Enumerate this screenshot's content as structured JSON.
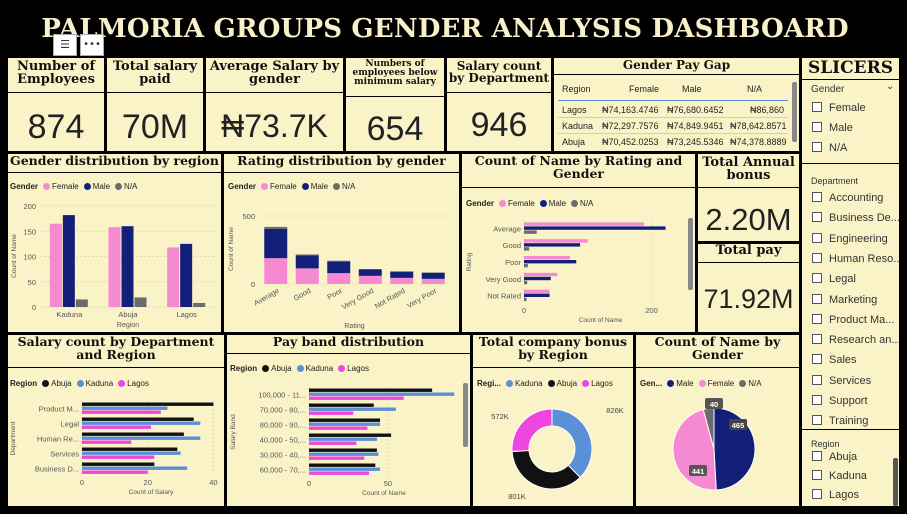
{
  "dashboard": {
    "title": "PALMORIA GROUPS GENDER ANALYSIS DASHBOARD"
  },
  "kpis": {
    "employees": {
      "label": "Number of Employees",
      "value": "874"
    },
    "salary_paid": {
      "label": "Total salary paid",
      "value": "70M"
    },
    "avg_salary": {
      "label": "Average Salary by gender",
      "value": "₦73.7K"
    },
    "below_min": {
      "label": "Numbers of employees below minimum salary",
      "value": "654"
    },
    "salary_count_dept": {
      "label": "Salary count by Department",
      "value": "946"
    },
    "annual_bonus": {
      "label": "Total Annual bonus",
      "value": "2.20M"
    },
    "total_pay": {
      "label": "Total pay",
      "value": "71.92M"
    }
  },
  "pay_gap": {
    "title": "Gender Pay Gap",
    "headers": [
      "Region",
      "Female",
      "Male",
      "N/A"
    ],
    "rows": [
      [
        "Lagos",
        "₦74,163.4746",
        "₦76,680.6452",
        "₦86,860"
      ],
      [
        "Kaduna",
        "₦72,297.7576",
        "₦74,849.9451",
        "₦78,642.8571"
      ],
      [
        "Abuja",
        "₦70,452.0253",
        "₦73,245.5346",
        "₦74,378.8889"
      ]
    ]
  },
  "colors": {
    "female": "#f58ad2",
    "male": "#13207a",
    "na": "#6b6b6b",
    "abuja": "#111111",
    "kaduna": "#5b8fd6",
    "lagos": "#f046e0",
    "panel": "#fbf3c8"
  },
  "legend": {
    "gender_label": "Gender",
    "region_label": "Region",
    "region_label_short": "Regi...",
    "gender_label_short": "Gen...",
    "female": "Female",
    "male": "Male",
    "na": "N/A",
    "abuja": "Abuja",
    "kaduna": "Kaduna",
    "lagos": "Lagos"
  },
  "slicers": {
    "title": "SLICERS",
    "gender": {
      "label": "Gender",
      "items": [
        "Female",
        "Male",
        "N/A"
      ]
    },
    "department": {
      "label": "Department",
      "items": [
        "Accounting",
        "Business De...",
        "Engineering",
        "Human Reso...",
        "Legal",
        "Marketing",
        "Product Ma...",
        "Research an...",
        "Sales",
        "Services",
        "Support",
        "Training"
      ]
    },
    "region": {
      "label": "Region",
      "items": [
        "Abuja",
        "Kaduna",
        "Lagos"
      ]
    }
  },
  "charts": {
    "gender_region_title": "Gender distribution by region",
    "rating_gender_title": "Rating distribution by gender",
    "count_rating_title": "Count of Name by Rating and Gender",
    "salary_dept_region_title": "Salary count by Department and Region",
    "payband_title": "Pay band distribution",
    "bonus_region_title": "Total company bonus by Region",
    "count_gender_title": "Count of Name by Gender"
  },
  "chart_data": [
    {
      "id": "gender_region",
      "type": "bar",
      "title": "Gender distribution by region",
      "categories": [
        "Kaduna",
        "Abuja",
        "Lagos"
      ],
      "series": [
        {
          "name": "Female",
          "values": [
            165,
            158,
            118
          ]
        },
        {
          "name": "Male",
          "values": [
            182,
            160,
            125
          ]
        },
        {
          "name": "N/A",
          "values": [
            15,
            19,
            8
          ]
        }
      ],
      "xlabel": "Region",
      "ylabel": "Count of Name",
      "ylim": [
        0,
        200
      ],
      "yticks": [
        0,
        50,
        100,
        150,
        200
      ]
    },
    {
      "id": "rating_gender",
      "type": "bar",
      "title": "Rating distribution by gender",
      "categories": [
        "Average",
        "Good",
        "Poor",
        "Very Good",
        "Not Rated",
        "Very Poor"
      ],
      "series": [
        {
          "name": "Female",
          "values": [
            190,
            115,
            80,
            60,
            45,
            38
          ]
        },
        {
          "name": "Male",
          "values": [
            215,
            95,
            85,
            48,
            45,
            45
          ]
        },
        {
          "name": "N/A",
          "values": [
            15,
            7,
            6,
            2,
            4,
            2
          ]
        }
      ],
      "stacked": true,
      "xlabel": "Rating",
      "ylabel": "Count of Name",
      "ylim": [
        0,
        500
      ],
      "yticks": [
        0,
        500
      ]
    },
    {
      "id": "count_rating",
      "type": "bar",
      "orientation": "horizontal",
      "title": "Count of Name by Rating and Gender",
      "categories": [
        "Average",
        "Good",
        "Poor",
        "Very Good",
        "Not Rated"
      ],
      "series": [
        {
          "name": "Female",
          "values": [
            188,
            100,
            72,
            52,
            40
          ]
        },
        {
          "name": "Male",
          "values": [
            222,
            88,
            82,
            42,
            40
          ]
        },
        {
          "name": "N/A",
          "values": [
            20,
            8,
            6,
            5,
            4
          ]
        }
      ],
      "xlabel": "Count of Name",
      "ylabel": "Rating",
      "xlim": [
        0,
        240
      ],
      "xticks": [
        0,
        200
      ]
    },
    {
      "id": "salary_dept_region",
      "type": "bar",
      "orientation": "horizontal",
      "title": "Salary count by Department and Region",
      "categories": [
        "Product M...",
        "Legal",
        "Human Re...",
        "Services",
        "Business D..."
      ],
      "series": [
        {
          "name": "Abuja",
          "values": [
            40,
            34,
            31,
            29,
            22
          ]
        },
        {
          "name": "Kaduna",
          "values": [
            26,
            36,
            36,
            30,
            32
          ]
        },
        {
          "name": "Lagos",
          "values": [
            24,
            21,
            15,
            22,
            20
          ]
        }
      ],
      "xlabel": "Count of Salary",
      "ylabel": "Department",
      "xlim": [
        0,
        42
      ],
      "xticks": [
        0,
        20,
        40
      ]
    },
    {
      "id": "payband",
      "type": "bar",
      "orientation": "horizontal",
      "title": "Pay band distribution",
      "categories": [
        "100,000 - 11...",
        "70,000 - 80,...",
        "80,000 - 90,...",
        "40,000 - 50,...",
        "30,000 - 40,...",
        "60,000 - 70,..."
      ],
      "series": [
        {
          "name": "Abuja",
          "values": [
            78,
            41,
            45,
            52,
            43,
            42
          ]
        },
        {
          "name": "Kaduna",
          "values": [
            92,
            55,
            45,
            43,
            44,
            45
          ]
        },
        {
          "name": "Lagos",
          "values": [
            60,
            28,
            37,
            30,
            35,
            38
          ]
        }
      ],
      "xlabel": "Count of Name",
      "ylabel": "Salary Band",
      "xlim": [
        0,
        95
      ],
      "xticks": [
        0,
        50
      ]
    },
    {
      "id": "bonus_region",
      "type": "pie",
      "title": "Total company bonus by Region",
      "categories": [
        "Kaduna",
        "Abuja",
        "Lagos"
      ],
      "values": [
        826,
        801,
        572
      ],
      "labels": [
        "826K",
        "801K",
        "572K"
      ]
    },
    {
      "id": "count_gender",
      "type": "pie",
      "title": "Count of Name by Gender",
      "categories": [
        "Male",
        "Female",
        "N/A"
      ],
      "values": [
        465,
        441,
        40
      ],
      "labels": [
        "465",
        "441",
        "40"
      ]
    }
  ]
}
